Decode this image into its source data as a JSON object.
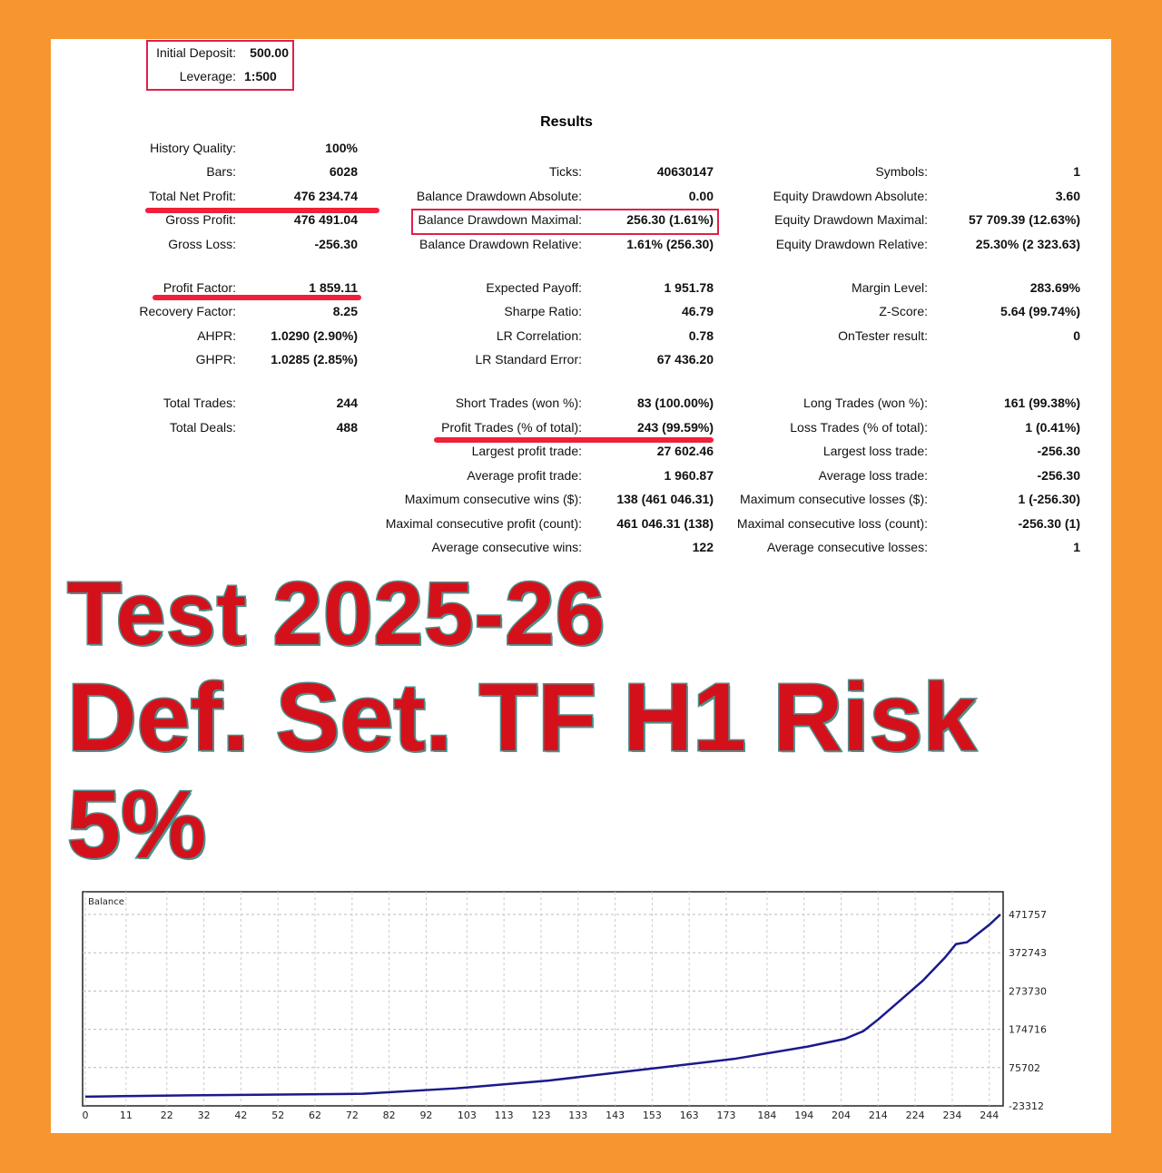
{
  "header": {
    "initial_deposit_label": "Initial Deposit:",
    "initial_deposit": "500.00",
    "leverage_label": "Leverage:",
    "leverage": "1:500"
  },
  "results_title": "Results",
  "col1": [
    {
      "row": 0,
      "label": "History Quality:",
      "value": "100%"
    },
    {
      "row": 1,
      "label": "Bars:",
      "value": "6028"
    },
    {
      "row": 2,
      "label": "Total Net Profit:",
      "value": "476 234.74"
    },
    {
      "row": 3,
      "label": "Gross Profit:",
      "value": "476 491.04"
    },
    {
      "row": 4,
      "label": "Gross Loss:",
      "value": "-256.30"
    },
    {
      "row": 5,
      "label": "Profit Factor:",
      "value": "1 859.11"
    },
    {
      "row": 6,
      "label": "Recovery Factor:",
      "value": "8.25"
    },
    {
      "row": 7,
      "label": "AHPR:",
      "value": "1.0290 (2.90%)"
    },
    {
      "row": 8,
      "label": "GHPR:",
      "value": "1.0285 (2.85%)"
    },
    {
      "row": 9,
      "label": "Total Trades:",
      "value": "244"
    },
    {
      "row": 10,
      "label": "Total Deals:",
      "value": "488"
    }
  ],
  "col2": [
    {
      "row": 1,
      "label": "Ticks:",
      "value": "40630147"
    },
    {
      "row": 2,
      "label": "Balance Drawdown Absolute:",
      "value": "0.00"
    },
    {
      "row": 3,
      "label": "Balance Drawdown Maximal:",
      "value": "256.30 (1.61%)"
    },
    {
      "row": 4,
      "label": "Balance Drawdown Relative:",
      "value": "1.61% (256.30)"
    },
    {
      "row": 5,
      "label": "Expected Payoff:",
      "value": "1 951.78"
    },
    {
      "row": 6,
      "label": "Sharpe Ratio:",
      "value": "46.79"
    },
    {
      "row": 7,
      "label": "LR Correlation:",
      "value": "0.78"
    },
    {
      "row": 8,
      "label": "LR Standard Error:",
      "value": "67 436.20"
    },
    {
      "row": 9,
      "label": "Short Trades (won %):",
      "value": "83 (100.00%)"
    },
    {
      "row": 10,
      "label": "Profit Trades (% of total):",
      "value": "243 (99.59%)"
    },
    {
      "row": 11,
      "label": "Largest profit trade:",
      "value": "27 602.46"
    },
    {
      "row": 12,
      "label": "Average profit trade:",
      "value": "1 960.87"
    },
    {
      "row": 13,
      "label": "Maximum consecutive wins ($):",
      "value": "138 (461 046.31)"
    },
    {
      "row": 14,
      "label": "Maximal consecutive profit (count):",
      "value": "461 046.31 (138)"
    },
    {
      "row": 15,
      "label": "Average consecutive wins:",
      "value": "122"
    }
  ],
  "col3": [
    {
      "row": 1,
      "label": "Symbols:",
      "value": "1"
    },
    {
      "row": 2,
      "label": "Equity Drawdown Absolute:",
      "value": "3.60"
    },
    {
      "row": 3,
      "label": "Equity Drawdown Maximal:",
      "value": "57 709.39 (12.63%)"
    },
    {
      "row": 4,
      "label": "Equity Drawdown Relative:",
      "value": "25.30% (2 323.63)"
    },
    {
      "row": 5,
      "label": "Margin Level:",
      "value": "283.69%"
    },
    {
      "row": 6,
      "label": "Z-Score:",
      "value": "5.64 (99.74%)"
    },
    {
      "row": 7,
      "label": "OnTester result:",
      "value": "0"
    },
    {
      "row": 9,
      "label": "Long Trades (won %):",
      "value": "161 (99.38%)"
    },
    {
      "row": 10,
      "label": "Loss Trades (% of total):",
      "value": "1 (0.41%)"
    },
    {
      "row": 11,
      "label": "Largest loss trade:",
      "value": "-256.30"
    },
    {
      "row": 12,
      "label": "Average loss trade:",
      "value": "-256.30"
    },
    {
      "row": 13,
      "label": "Maximum consecutive losses ($):",
      "value": "1 (-256.30)"
    },
    {
      "row": 14,
      "label": "Maximal consecutive loss (count):",
      "value": "-256.30 (1)"
    },
    {
      "row": 15,
      "label": "Average consecutive losses:",
      "value": "1"
    }
  ],
  "overlay": {
    "line1": "Test 2025-26",
    "line2": "Def. Set. TF H1 Risk 5%"
  },
  "chart_data": {
    "type": "line",
    "legend": "Balance",
    "x_ticks": [
      "0",
      "11",
      "22",
      "32",
      "42",
      "52",
      "62",
      "72",
      "82",
      "92",
      "103",
      "113",
      "123",
      "133",
      "143",
      "153",
      "163",
      "173",
      "184",
      "194",
      "204",
      "214",
      "224",
      "234",
      "244"
    ],
    "y_ticks": [
      "471757",
      "372743",
      "273730",
      "174716",
      "75702",
      "-23312"
    ],
    "ylim": [
      -23312,
      471757
    ],
    "xlim": [
      0,
      247
    ],
    "grid": true,
    "line_color": "#1a1a8c",
    "x": [
      0,
      28,
      75,
      100,
      125,
      150,
      175,
      195,
      205,
      210,
      214,
      220,
      226,
      232,
      235,
      238,
      244,
      247
    ],
    "y": [
      500,
      4000,
      8000,
      22000,
      42000,
      70000,
      98000,
      130000,
      150000,
      170000,
      200000,
      250000,
      300000,
      360000,
      395000,
      400000,
      445000,
      471757
    ]
  },
  "colors": {
    "border": "#f7962f",
    "highlight": "#e0204a",
    "overlay_text": "#d4111b"
  }
}
